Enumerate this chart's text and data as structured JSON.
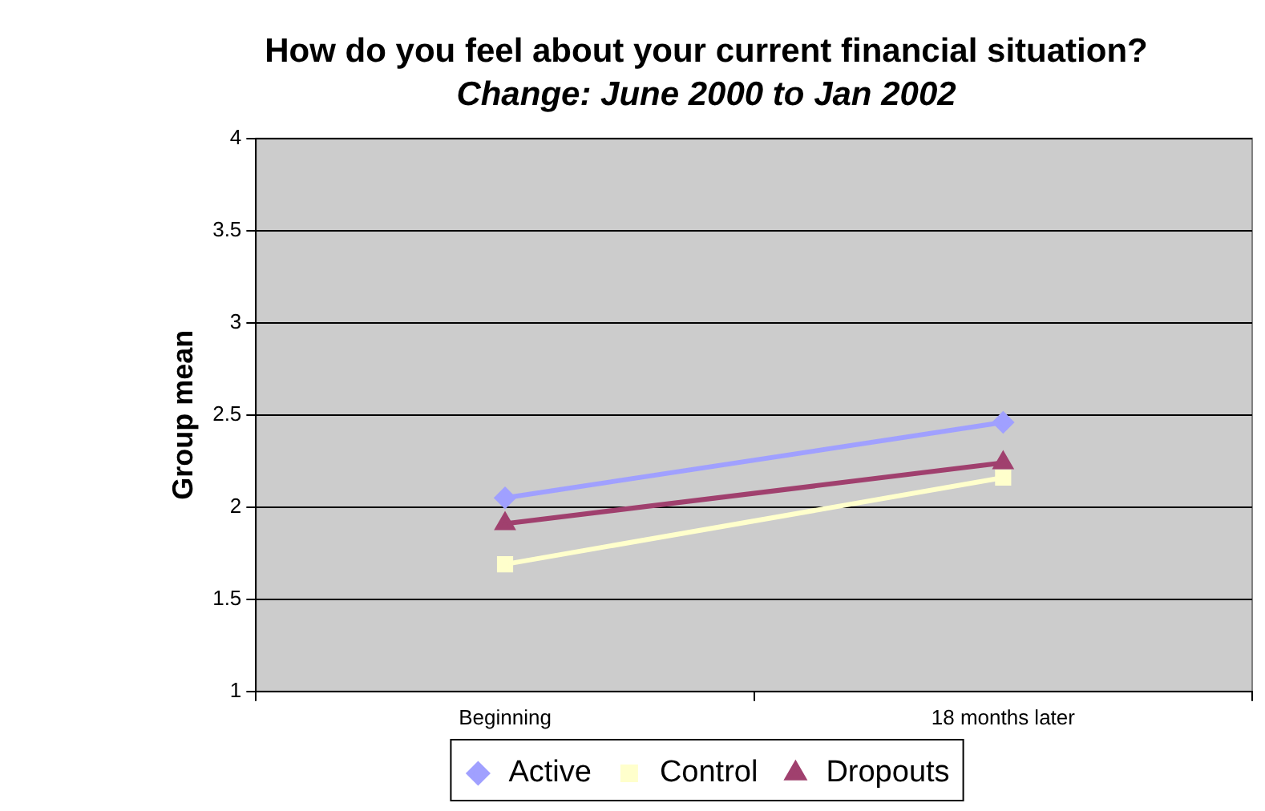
{
  "chart_data": {
    "type": "line",
    "title": "How do you feel about your current financial situation?",
    "subtitle": "Change: June 2000 to Jan 2002",
    "ylabel": "Group mean",
    "categories": [
      "Beginning",
      "18 months later"
    ],
    "series": [
      {
        "name": "Active",
        "color": "#a0a0ff",
        "marker": "diamond",
        "values": [
          2.05,
          2.46
        ]
      },
      {
        "name": "Control",
        "color": "#ffffcc",
        "marker": "square",
        "values": [
          1.69,
          2.16
        ]
      },
      {
        "name": "Dropouts",
        "color": "#a0406e",
        "marker": "triangle",
        "values": [
          1.91,
          2.24
        ]
      }
    ],
    "ylim": [
      1,
      4
    ],
    "yticks": [
      1,
      1.5,
      2,
      2.5,
      3,
      3.5,
      4
    ],
    "grid": "y",
    "legend": "bottom",
    "line_style": "solid"
  }
}
